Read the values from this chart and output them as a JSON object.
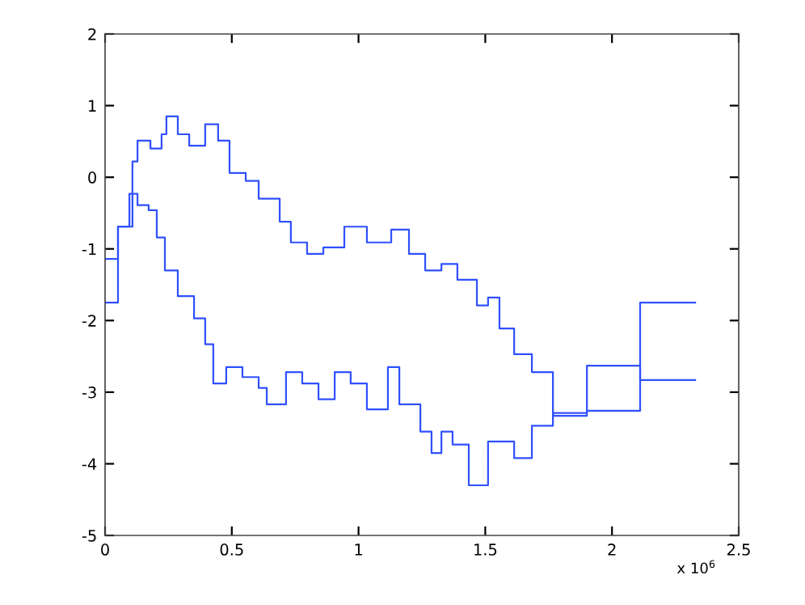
{
  "chart_data": {
    "type": "step",
    "series": [
      {
        "color": "#3050ff",
        "x": [
          0,
          0.051,
          0.108,
          0.128,
          0.179,
          0.223,
          0.242,
          0.287,
          0.332,
          0.395,
          0.446,
          0.491,
          0.555,
          0.606,
          0.689,
          0.733,
          0.797,
          0.861,
          0.944,
          1.033,
          1.129,
          1.199,
          1.263,
          1.327,
          1.39,
          1.467,
          1.511,
          1.556,
          1.614,
          1.684,
          1.767,
          1.901,
          2.111,
          2.328
        ],
        "values": [
          -1.14,
          -0.69,
          0.22,
          0.51,
          0.4,
          0.6,
          0.85,
          0.6,
          0.44,
          0.74,
          0.51,
          0.06,
          -0.05,
          -0.3,
          -0.62,
          -0.91,
          -1.07,
          -0.98,
          -0.69,
          -0.91,
          -0.73,
          -1.07,
          -1.3,
          -1.21,
          -1.43,
          -1.79,
          -1.68,
          -2.11,
          -2.47,
          -2.72,
          -3.33,
          -3.26,
          -1.75,
          -1.75
        ]
      },
      {
        "color": "#3050ff",
        "x": [
          0,
          0.051,
          0.096,
          0.128,
          0.172,
          0.204,
          0.236,
          0.287,
          0.351,
          0.395,
          0.427,
          0.478,
          0.542,
          0.606,
          0.638,
          0.714,
          0.778,
          0.842,
          0.906,
          0.969,
          1.033,
          1.116,
          1.161,
          1.244,
          1.288,
          1.327,
          1.371,
          1.435,
          1.511,
          1.614,
          1.684,
          1.767,
          1.901,
          2.111,
          2.328
        ],
        "values": [
          -1.75,
          -0.69,
          -0.23,
          -0.39,
          -0.46,
          -0.84,
          -1.3,
          -1.66,
          -1.97,
          -2.33,
          -2.88,
          -2.65,
          -2.79,
          -2.94,
          -3.17,
          -2.72,
          -2.88,
          -3.1,
          -2.72,
          -2.88,
          -3.24,
          -2.65,
          -3.17,
          -3.55,
          -3.85,
          -3.55,
          -3.73,
          -4.3,
          -3.69,
          -3.92,
          -3.47,
          -3.29,
          -2.63,
          -2.83,
          -2.83
        ]
      }
    ],
    "xlim": [
      0,
      2.5
    ],
    "xticks": [
      0,
      0.5,
      1,
      1.5,
      2,
      2.5
    ],
    "ylim": [
      -5,
      2
    ],
    "yticks": [
      -5,
      -4,
      -3,
      -2,
      -1,
      0,
      1,
      2
    ],
    "annotations": [
      "x 10$^{6}$"
    ],
    "grid": false,
    "legend": false
  }
}
